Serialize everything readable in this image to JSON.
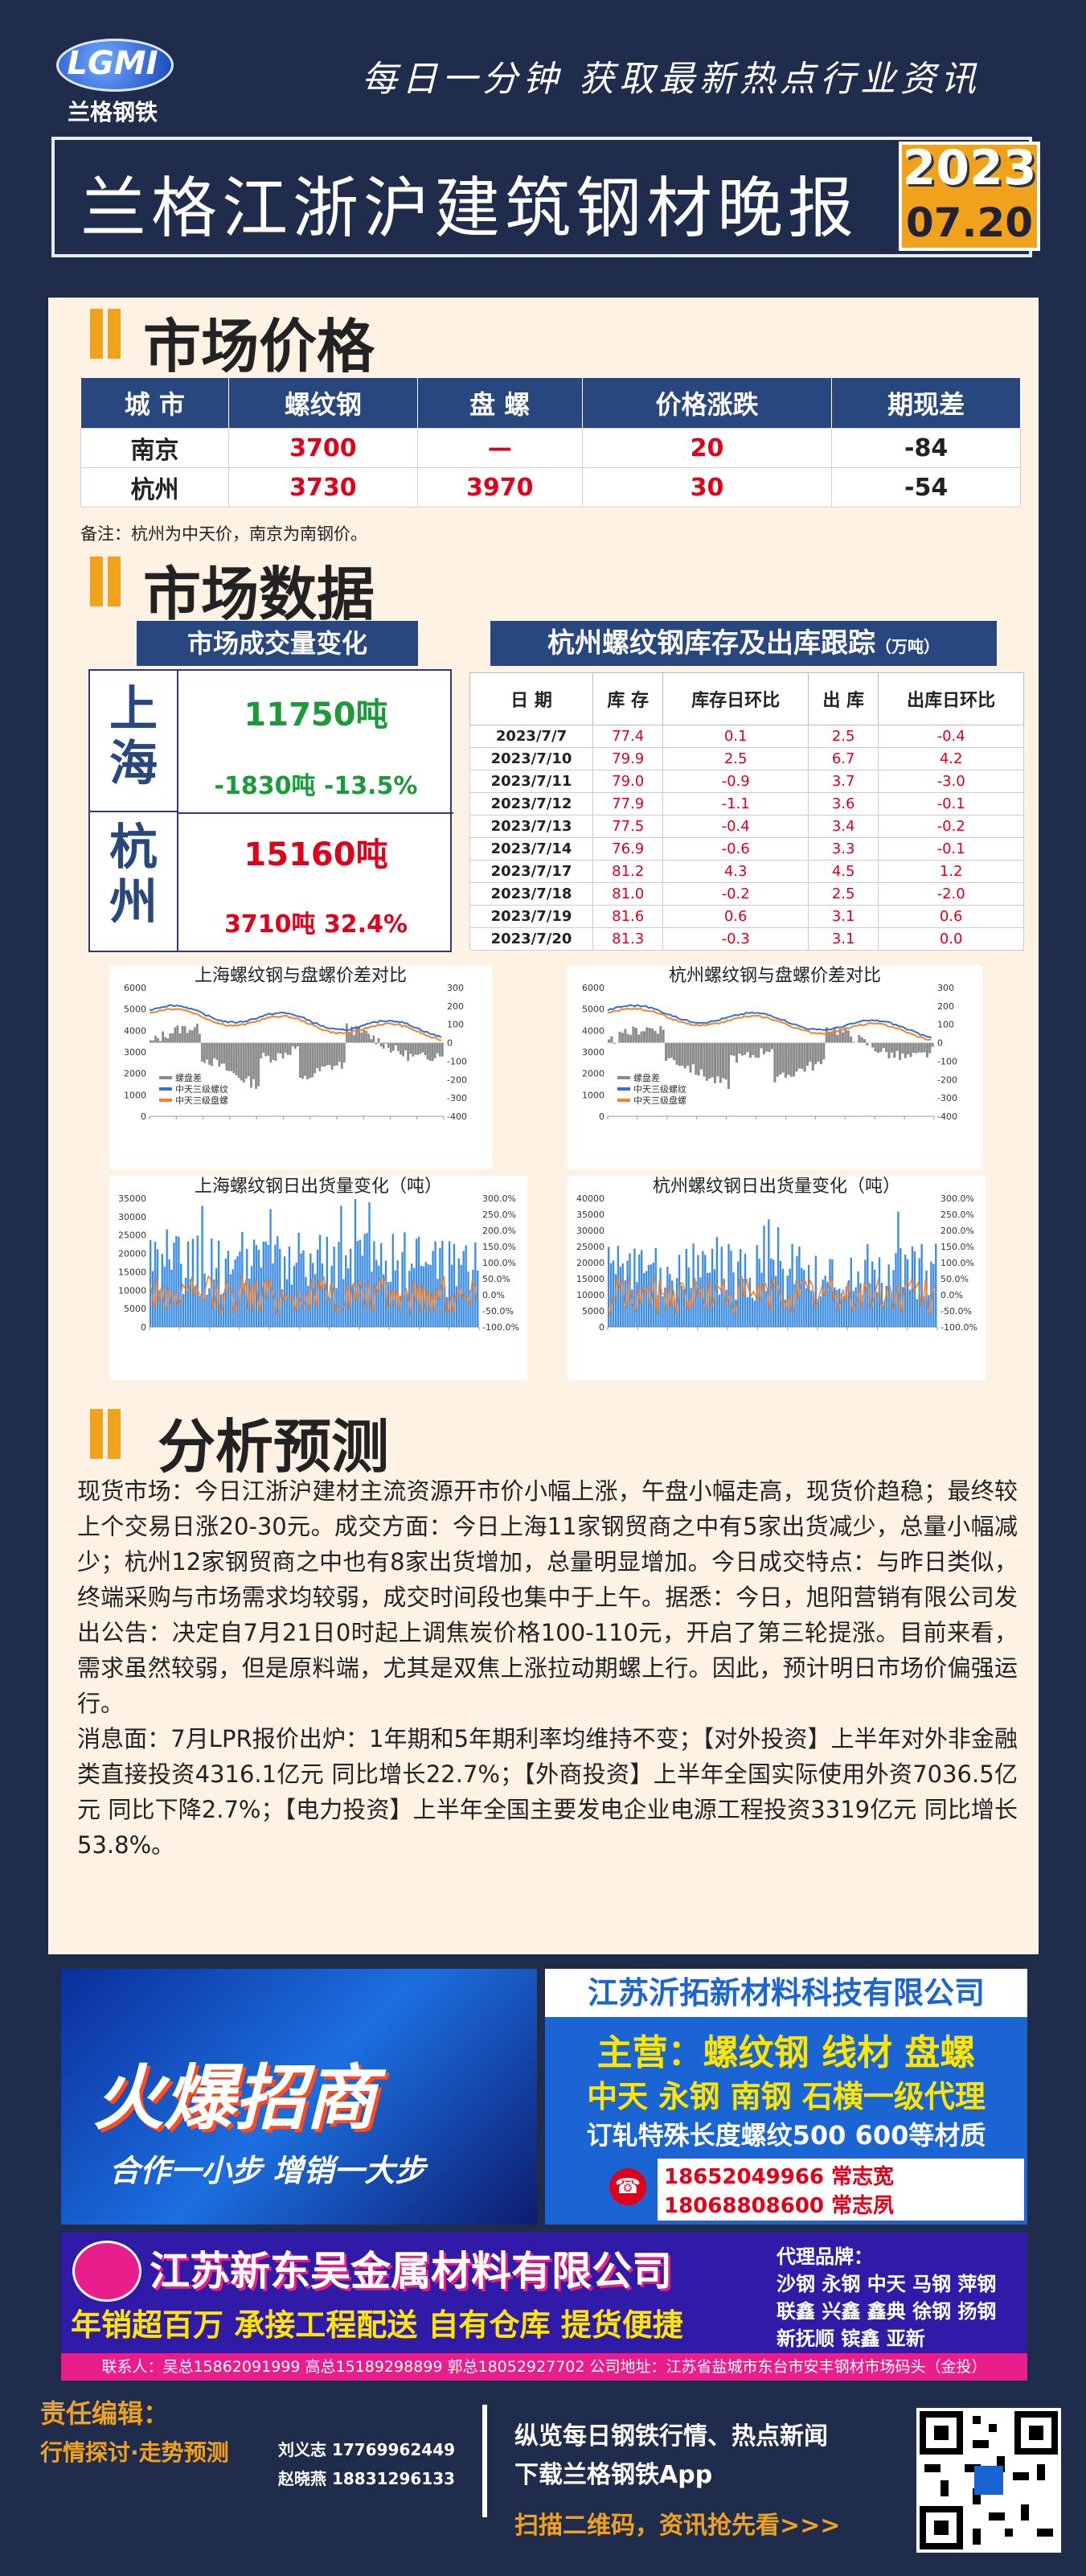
{
  "header": {
    "logo_text": "LGMI",
    "logo_sub": "兰格钢铁",
    "slogan": "每日一分钟  获取最新热点行业资讯",
    "title": "兰格江浙沪建筑钢材晚报",
    "year": "2023",
    "date": "07.20"
  },
  "sections": {
    "market_price": "市场价格",
    "market_data": "市场数据",
    "analysis": "分析预测"
  },
  "price_table": {
    "headers": [
      "城  市",
      "螺纹钢",
      "盘  螺",
      "价格涨跌",
      "期现差"
    ],
    "rows": [
      {
        "city": "南京",
        "rebar": "3700",
        "coil": "—",
        "change": "20",
        "basis": "-84"
      },
      {
        "city": "杭州",
        "rebar": "3730",
        "coil": "3970",
        "change": "30",
        "basis": "-54"
      }
    ],
    "note": "备注：杭州为中天价，南京为南钢价。"
  },
  "volume": {
    "title": "市场成交量变化",
    "items": [
      {
        "city": "上海",
        "value": "11750吨",
        "change": "-1830吨  -13.5%",
        "color": "#1b9a3b"
      },
      {
        "city": "杭州",
        "value": "15160吨",
        "change": "3710吨  32.4%",
        "color": "#e0001a"
      }
    ]
  },
  "inventory": {
    "title": "杭州螺纹钢库存及出库跟踪",
    "unit": "（万吨）",
    "headers": [
      "日 期",
      "库 存",
      "库存日环比",
      "出 库",
      "出库日环比"
    ],
    "rows": [
      [
        "2023/7/7",
        "77.4",
        "0.1",
        "2.5",
        "-0.4"
      ],
      [
        "2023/7/10",
        "79.9",
        "2.5",
        "6.7",
        "4.2"
      ],
      [
        "2023/7/11",
        "79.0",
        "-0.9",
        "3.7",
        "-3.0"
      ],
      [
        "2023/7/12",
        "77.9",
        "-1.1",
        "3.6",
        "-0.1"
      ],
      [
        "2023/7/13",
        "77.5",
        "-0.4",
        "3.4",
        "-0.2"
      ],
      [
        "2023/7/14",
        "76.9",
        "-0.6",
        "3.3",
        "-0.1"
      ],
      [
        "2023/7/17",
        "81.2",
        "4.3",
        "4.5",
        "1.2"
      ],
      [
        "2023/7/18",
        "81.0",
        "-0.2",
        "2.5",
        "-2.0"
      ],
      [
        "2023/7/19",
        "81.6",
        "0.6",
        "3.1",
        "0.6"
      ],
      [
        "2023/7/20",
        "81.3",
        "-0.3",
        "3.1",
        "0.0"
      ]
    ]
  },
  "chart_data": [
    {
      "type": "line",
      "title": "上海螺纹钢与盘螺价差对比",
      "series": [
        {
          "name": "螺盘差"
        },
        {
          "name": "中天三级螺纹"
        },
        {
          "name": "中天三级盘螺"
        }
      ],
      "ylim_left": [
        0,
        6000
      ],
      "ylim_right": [
        -400,
        300
      ],
      "left_ticks": [
        "6000",
        "5000",
        "4000",
        "3000",
        "2000",
        "1000",
        "0"
      ],
      "right_ticks": [
        "300",
        "200",
        "100",
        "0",
        "-100",
        "-200",
        "-300",
        "-400"
      ]
    },
    {
      "type": "line",
      "title": "杭州螺纹钢与盘螺价差对比",
      "series": [
        {
          "name": "螺盘差"
        },
        {
          "name": "中天三级螺纹"
        },
        {
          "name": "中天三级盘螺"
        }
      ],
      "ylim_left": [
        0,
        6000
      ],
      "ylim_right": [
        -400,
        300
      ],
      "left_ticks": [
        "6000",
        "5000",
        "4000",
        "3000",
        "2000",
        "1000",
        "0"
      ],
      "right_ticks": [
        "300",
        "200",
        "100",
        "0",
        "-100",
        "-200",
        "-300",
        "-400"
      ]
    },
    {
      "type": "bar",
      "title": "上海螺纹钢日出货量变化（吨）",
      "ylim_left": [
        0,
        35000
      ],
      "ylim_right": [
        -100,
        300
      ],
      "left_ticks": [
        "35000",
        "30000",
        "25000",
        "20000",
        "15000",
        "10000",
        "5000",
        "0"
      ],
      "right_ticks": [
        "300.0%",
        "250.0%",
        "200.0%",
        "150.0%",
        "100.0%",
        "50.0%",
        "0.0%",
        "-50.0%",
        "-100.0%"
      ]
    },
    {
      "type": "bar",
      "title": "杭州螺纹钢日出货量变化（吨）",
      "ylim_left": [
        0,
        40000
      ],
      "ylim_right": [
        -100,
        300
      ],
      "left_ticks": [
        "40000",
        "35000",
        "30000",
        "25000",
        "20000",
        "15000",
        "10000",
        "5000",
        "0"
      ],
      "right_ticks": [
        "300.0%",
        "250.0%",
        "200.0%",
        "150.0%",
        "100.0%",
        "50.0%",
        "0.0%",
        "-50.0%",
        "-100.0%"
      ]
    }
  ],
  "analysis": {
    "p1": "现货市场：今日江浙沪建材主流资源开市价小幅上涨，午盘小幅走高，现货价趋稳；最终较上个交易日涨20-30元。成交方面：今日上海11家钢贸商之中有5家出货减少，总量小幅减少；杭州12家钢贸商之中也有8家出货增加，总量明显增加。今日成交特点：与昨日类似，终端采购与市场需求均较弱，成交时间段也集中于上午。据悉：今日，旭阳营销有限公司发出公告：决定自7月21日0时起上调焦炭价格100-110元，开启了第三轮提涨。目前来看，需求虽然较弱，但是原料端，尤其是双焦上涨拉动期螺上行。因此，预计明日市场价偏强运行。",
    "p2": "消息面：7月LPR报价出炉：1年期和5年期利率均维持不变；【对外投资】上半年对外非金融类直接投资4316.1亿元 同比增长22.7%；【外商投资】上半年全国实际使用外资7036.5亿元 同比下降2.7%；【电力投资】上半年全国主要发电企业电源工程投资3319亿元 同比增长53.8%。"
  },
  "ads": {
    "ad1_main": "火爆招商",
    "ad1_sub": "合作一小步  增销一大步",
    "ad2_company": "江苏沂拓新材料科技有限公司",
    "ad2_line1": "主营：螺纹钢 线材 盘螺",
    "ad2_line2": "中天 永钢 南钢 石横一级代理",
    "ad2_line3": "订轧特殊长度螺纹500 600等材质",
    "ad2_phone1": "18652049966 常志宽",
    "ad2_phone2": "18068808600 常志夙",
    "ad3_company": "江苏新东吴金属材料有限公司",
    "ad3_slogan": "年销超百万  承接工程配送  自有仓库  提货便捷",
    "ad3_brand_title": "代理品牌：",
    "ad3_brand1": "沙钢 永钢 中天 马钢 萍钢",
    "ad3_brand2": "联鑫 兴鑫 鑫典 徐钢 扬钢",
    "ad3_brand3": "新抚顺 镔鑫 亚新",
    "ad3_contact": "联系人：吴总15862091999  高总15189298899  郭总18052927702  公司地址：江苏省盐城市东台市安丰钢材市场码头（金投）"
  },
  "footer": {
    "editor_label": "责任编辑：",
    "editor_sub": "行情探讨·走势预测",
    "name1": "刘义志 17769962449",
    "name2": "赵晓燕 18831296133",
    "line1": "纵览每日钢铁行情、热点新闻",
    "line2": "下载兰格钢铁App",
    "scan": "扫描二维码，资讯抢先看>>>"
  }
}
